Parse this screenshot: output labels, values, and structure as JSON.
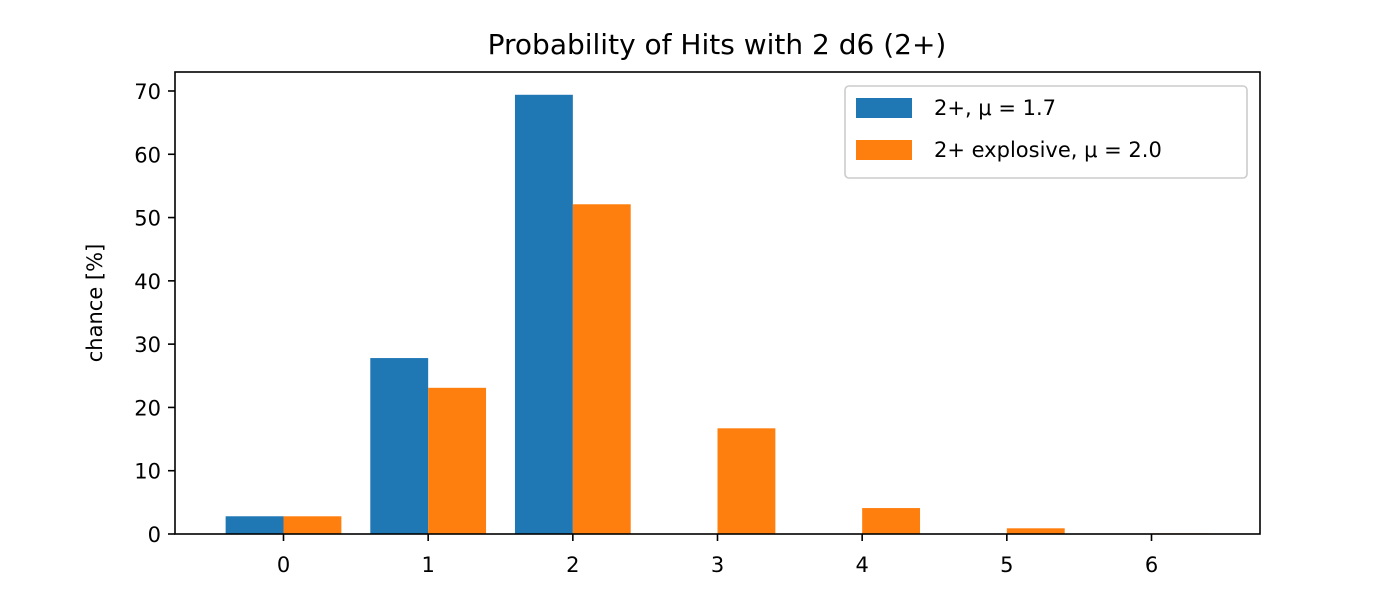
{
  "chart_data": {
    "type": "bar",
    "title": "Probability of Hits with 2 d6 (2+)",
    "xlabel": "",
    "ylabel": "chance [%]",
    "categories": [
      "0",
      "1",
      "2",
      "3",
      "4",
      "5",
      "6"
    ],
    "x_ticks": [
      "0",
      "1",
      "2",
      "3",
      "4",
      "5",
      "6"
    ],
    "y_ticks": [
      "0",
      "10",
      "20",
      "30",
      "40",
      "50",
      "60",
      "70"
    ],
    "xlim": [
      -0.75,
      6.75
    ],
    "ylim": [
      0,
      73
    ],
    "grid": false,
    "legend_position": "top-right",
    "series": [
      {
        "name": "2+, μ = 1.7",
        "color": "#1f77b4",
        "values": [
          2.8,
          27.8,
          69.4,
          0,
          0,
          0,
          0
        ]
      },
      {
        "name": "2+ explosive, μ = 2.0",
        "color": "#ff7f0e",
        "values": [
          2.8,
          23.1,
          52.1,
          16.7,
          4.1,
          0.9,
          0.1
        ]
      }
    ]
  }
}
